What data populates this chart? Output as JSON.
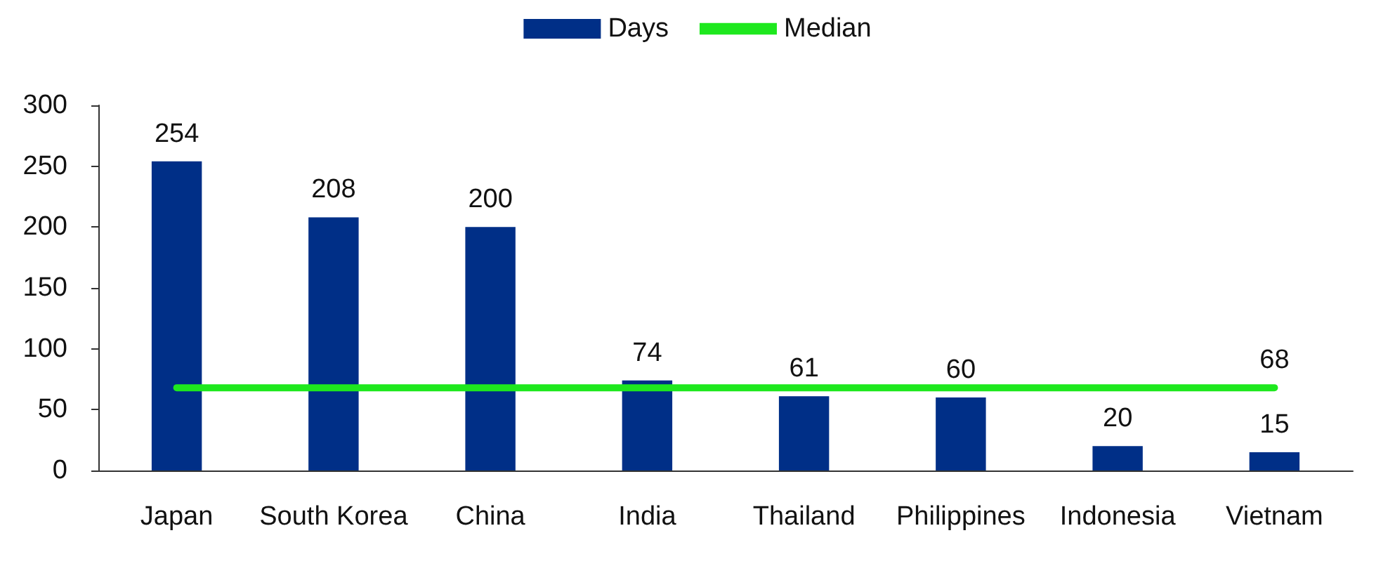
{
  "chart_data": {
    "type": "bar",
    "categories": [
      "Japan",
      "South Korea",
      "China",
      "India",
      "Thailand",
      "Philippines",
      "Indonesia",
      "Vietnam"
    ],
    "series": [
      {
        "name": "Days",
        "color": "#002f87",
        "values": [
          254,
          208,
          200,
          74,
          61,
          60,
          20,
          15
        ],
        "value_labels": [
          "254",
          "208",
          "200",
          "74",
          "61",
          "60",
          "20",
          "15"
        ]
      },
      {
        "name": "Median",
        "type": "line",
        "color": "#1ee81e",
        "values": [
          68,
          68,
          68,
          68,
          68,
          68,
          68,
          68
        ],
        "value_labels": [
          null,
          null,
          null,
          null,
          null,
          null,
          null,
          "68"
        ]
      }
    ],
    "ylim": [
      0,
      300
    ],
    "yticks": [
      0,
      50,
      100,
      150,
      200,
      250,
      300
    ],
    "grid": false,
    "legend": "top",
    "marker": "none"
  }
}
